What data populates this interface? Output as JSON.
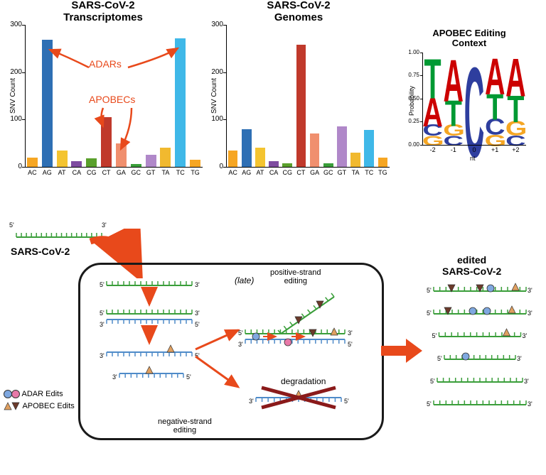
{
  "chart1": {
    "title": "SARS-CoV-2\nTranscriptomes",
    "ylabel": "SNV Count",
    "ymax": 300,
    "yticks": [
      0,
      100,
      200,
      300
    ],
    "categories": [
      "AC",
      "AG",
      "AT",
      "CA",
      "CG",
      "CT",
      "GA",
      "GC",
      "GT",
      "TA",
      "TC",
      "TG"
    ],
    "values": [
      20,
      268,
      35,
      12,
      18,
      105,
      50,
      6,
      25,
      40,
      272,
      15
    ],
    "colors": [
      "#f6a623",
      "#2e6fb4",
      "#f4c430",
      "#7e4ca0",
      "#5aa02c",
      "#c0392b",
      "#f08f6e",
      "#3a9e3a",
      "#b088c9",
      "#f1b92f",
      "#3fb8e8",
      "#f6a623"
    ]
  },
  "chart2": {
    "title": "SARS-CoV-2\nGenomes",
    "ylabel": "SNV Count",
    "ymax": 300,
    "yticks": [
      0,
      100,
      200,
      300
    ],
    "categories": [
      "AC",
      "AG",
      "AT",
      "CA",
      "CG",
      "CT",
      "GA",
      "GC",
      "GT",
      "TA",
      "TC",
      "TG"
    ],
    "values": [
      35,
      80,
      40,
      12,
      8,
      258,
      70,
      8,
      85,
      30,
      78,
      20
    ],
    "colors": [
      "#f6a623",
      "#2e6fb4",
      "#f4c430",
      "#7e4ca0",
      "#5aa02c",
      "#c0392b",
      "#f08f6e",
      "#3a9e3a",
      "#b088c9",
      "#f1b92f",
      "#3fb8e8",
      "#f6a623"
    ]
  },
  "annotations": {
    "adars": "ADARs",
    "apobecs": "APOBECs"
  },
  "logo": {
    "title": "APOBEC Editing\nContext",
    "ylabel": "Probability",
    "yticks": [
      "0.00",
      "0.25",
      "0.50",
      "0.75",
      "1.00"
    ],
    "xlabels": [
      "-2",
      "-1",
      "0",
      "+1",
      "+2"
    ],
    "xaxis_label": "nt",
    "columns": [
      [
        {
          "l": "T",
          "c": "#009933",
          "h": 0.44
        },
        {
          "l": "A",
          "c": "#cc0000",
          "h": 0.32
        },
        {
          "l": "C",
          "c": "#2e3e9e",
          "h": 0.13
        },
        {
          "l": "G",
          "c": "#f5a623",
          "h": 0.11
        }
      ],
      [
        {
          "l": "A",
          "c": "#cc0000",
          "h": 0.47
        },
        {
          "l": "T",
          "c": "#009933",
          "h": 0.29
        },
        {
          "l": "G",
          "c": "#f5a623",
          "h": 0.13
        },
        {
          "l": "C",
          "c": "#2e3e9e",
          "h": 0.11
        }
      ],
      [
        {
          "l": "C",
          "c": "#2e3e9e",
          "h": 1.0
        }
      ],
      [
        {
          "l": "A",
          "c": "#cc0000",
          "h": 0.4
        },
        {
          "l": "T",
          "c": "#009933",
          "h": 0.29
        },
        {
          "l": "C",
          "c": "#2e3e9e",
          "h": 0.18
        },
        {
          "l": "G",
          "c": "#f5a623",
          "h": 0.13
        }
      ],
      [
        {
          "l": "A",
          "c": "#cc0000",
          "h": 0.42
        },
        {
          "l": "T",
          "c": "#009933",
          "h": 0.3
        },
        {
          "l": "G",
          "c": "#f5a623",
          "h": 0.16
        },
        {
          "l": "C",
          "c": "#2e3e9e",
          "h": 0.12
        }
      ]
    ]
  },
  "diagram": {
    "outer_label": "SARS-CoV-2",
    "neg_label": "negative-strand\nediting",
    "pos_label": "positive-strand\nediting",
    "late": "(late)",
    "degradation": "degradation",
    "edited_title": "edited\nSARS-CoV-2",
    "five": "5'",
    "three": "3'",
    "legend_adar": "ADAR Edits",
    "legend_apobec": "APOBEC Edits",
    "colors": {
      "pos_strand": "#3a9e3a",
      "neg_strand": "#4f8bc9",
      "arrow": "#e8491b",
      "adar_blue": "#7fa8e0",
      "adar_pink": "#e879a8",
      "apobec_tan": "#e0a060",
      "apobec_dark": "#6b3a2a",
      "cross": "#8a1a1a",
      "box": "#1a1a1a"
    }
  }
}
